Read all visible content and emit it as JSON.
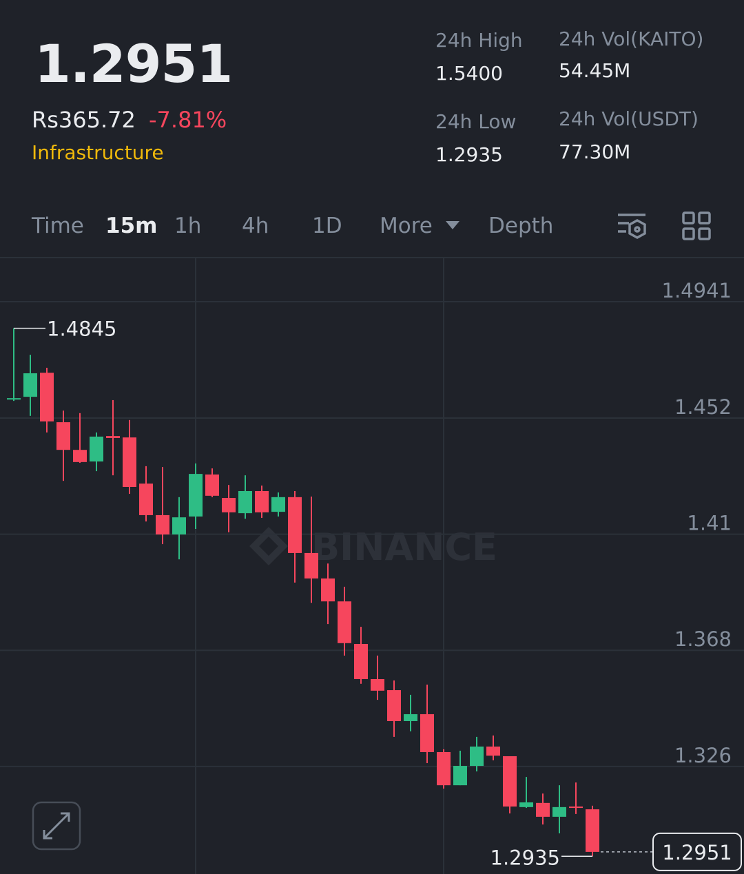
{
  "header": {
    "price": "1.2951",
    "fiat_price": "Rs365.72",
    "change": "-7.81%",
    "tag": "Infrastructure",
    "stats": [
      {
        "label": "24h High",
        "value": "1.5400"
      },
      {
        "label": "24h Vol(KAITO)",
        "value": "54.45M"
      },
      {
        "label": "24h Low",
        "value": "1.2935"
      },
      {
        "label": "24h Vol(USDT)",
        "value": "77.30M"
      }
    ]
  },
  "tabs": [
    "Time",
    "15m",
    "1h",
    "4h",
    "1D",
    "More",
    "Depth"
  ],
  "active_tab": "15m",
  "chart_data": {
    "type": "candlestick",
    "watermark": "BINANCE",
    "up_color": "#2ebd85",
    "down_color": "#f6465d",
    "grid": true,
    "ylim": [
      1.2871,
      1.5098
    ],
    "yticks": [
      1.4941,
      1.452,
      1.41,
      1.368,
      1.326
    ],
    "open": [
      1.4587,
      1.4597,
      1.4684,
      1.4505,
      1.4405,
      1.4363,
      1.4455,
      1.445,
      1.4283,
      1.4169,
      1.4099,
      1.4164,
      1.4316,
      1.4231,
      1.4176,
      1.4256,
      1.4181,
      1.4234,
      1.4032,
      1.394,
      1.3857,
      1.3703,
      1.3576,
      1.3536,
      1.3424,
      1.3449,
      1.3312,
      1.3192,
      1.3262,
      1.3332,
      1.3297,
      1.3113,
      1.3128,
      1.3078,
      1.3115,
      1.3105
    ],
    "high": [
      1.4845,
      1.4749,
      1.4702,
      1.4547,
      1.4538,
      1.4468,
      1.4585,
      1.4513,
      1.4346,
      1.4343,
      1.4234,
      1.4356,
      1.4338,
      1.4278,
      1.4313,
      1.4276,
      1.4251,
      1.4256,
      1.4236,
      1.3994,
      1.391,
      1.3765,
      1.3661,
      1.3571,
      1.3519,
      1.3556,
      1.3322,
      1.3317,
      1.3367,
      1.3372,
      1.3297,
      1.3222,
      1.3162,
      1.3192,
      1.3202,
      1.3118
    ],
    "low": [
      1.4582,
      1.4528,
      1.4468,
      1.4293,
      1.4358,
      1.4328,
      1.4313,
      1.4246,
      1.4146,
      1.4064,
      1.4009,
      1.4119,
      1.4234,
      1.4107,
      1.4156,
      1.4159,
      1.4164,
      1.3925,
      1.3852,
      1.3775,
      1.3661,
      1.3559,
      1.3501,
      1.3367,
      1.3387,
      1.3272,
      1.318,
      1.3192,
      1.3242,
      1.3282,
      1.309,
      1.311,
      1.305,
      1.3018,
      1.3088,
      1.2935
    ],
    "close": [
      1.4592,
      1.4682,
      1.4508,
      1.4405,
      1.4361,
      1.4453,
      1.4448,
      1.4271,
      1.4169,
      1.4099,
      1.4161,
      1.4318,
      1.4239,
      1.4179,
      1.4256,
      1.4179,
      1.4234,
      1.4032,
      1.394,
      1.3857,
      1.3706,
      1.3576,
      1.3534,
      1.3424,
      1.3449,
      1.3312,
      1.3192,
      1.3262,
      1.3332,
      1.3299,
      1.3115,
      1.313,
      1.3078,
      1.3113,
      1.311,
      1.2951
    ]
  }
}
